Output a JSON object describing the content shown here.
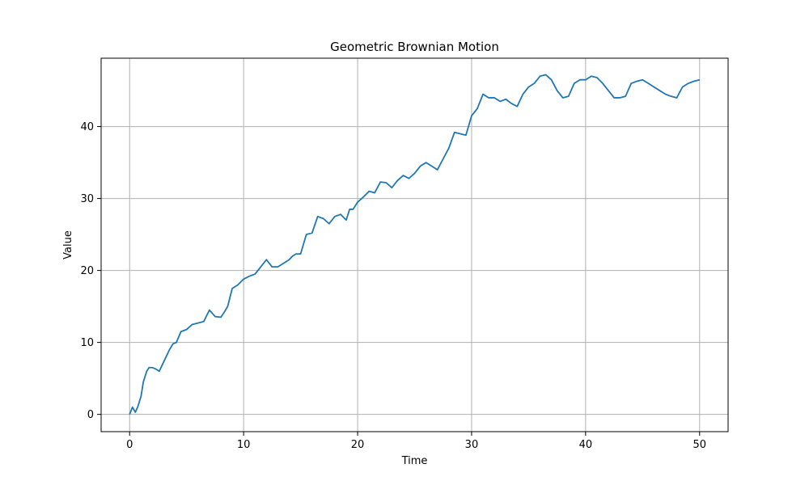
{
  "chart_data": {
    "type": "line",
    "title": "Geometric Brownian Motion",
    "xlabel": "Time",
    "ylabel": "Value",
    "xlim": [
      -2.5,
      52.5
    ],
    "ylim": [
      -2.4,
      49.5
    ],
    "xticks": [
      0,
      10,
      20,
      30,
      40,
      50
    ],
    "yticks": [
      0,
      10,
      20,
      30,
      40
    ],
    "grid": true,
    "colors": {
      "line": "#1f77b4",
      "grid": "#b0b0b0",
      "axes": "#000000"
    },
    "series": [
      {
        "x": [
          0,
          0.25,
          0.5,
          0.7,
          1,
          1.2,
          1.5,
          1.7,
          2,
          2.3,
          2.6,
          2.9,
          3.2,
          3.5,
          3.8,
          4.1,
          4.5,
          5,
          5.5,
          6,
          6.5,
          7,
          7.5,
          8,
          8.3,
          8.6,
          9,
          9.5,
          10,
          10.5,
          11,
          11.5,
          12,
          12.5,
          13,
          13.5,
          14,
          14.3,
          14.6,
          15,
          15.5,
          16,
          16.5,
          17,
          17.5,
          18,
          18.5,
          19,
          19.3,
          19.6,
          20,
          20.5,
          21,
          21.5,
          22,
          22.5,
          23,
          23.5,
          24,
          24.5,
          25,
          25.5,
          26,
          26.5,
          27,
          27.5,
          28,
          28.5,
          29,
          29.5,
          30,
          30.5,
          31,
          31.5,
          32,
          32.5,
          33,
          33.5,
          34,
          34.5,
          35,
          35.5,
          36,
          36.5,
          37,
          37.5,
          38,
          38.5,
          39,
          39.5,
          40,
          40.5,
          41,
          41.5,
          42,
          42.5,
          43,
          43.5,
          44,
          44.5,
          45,
          45.5,
          46,
          46.5,
          47,
          47.5,
          48,
          48.5,
          49,
          49.5,
          50
        ],
        "values": [
          0,
          1,
          0.3,
          1,
          2.5,
          4.5,
          6,
          6.5,
          6.5,
          6.3,
          6,
          7,
          8,
          9,
          9.8,
          10,
          11.5,
          11.8,
          12.5,
          12.7,
          12.9,
          14.5,
          13.6,
          13.5,
          14.2,
          15,
          17.5,
          18,
          18.8,
          19.2,
          19.5,
          20.5,
          21.5,
          20.5,
          20.5,
          21,
          21.5,
          22,
          22.3,
          22.3,
          25,
          25.2,
          27.5,
          27.2,
          26.5,
          27.5,
          27.8,
          27,
          28.5,
          28.5,
          29.5,
          30.2,
          31,
          30.8,
          32.3,
          32.2,
          31.5,
          32.5,
          33.2,
          32.8,
          33.5,
          34.5,
          35,
          34.5,
          34,
          35.5,
          37,
          39.2,
          39,
          38.8,
          41.5,
          42.5,
          44.5,
          44,
          44,
          43.5,
          43.8,
          43.2,
          42.8,
          44.5,
          45.5,
          46,
          47,
          47.2,
          46.5,
          45,
          44,
          44.2,
          46,
          46.5,
          46.5,
          47,
          46.8,
          46,
          45,
          44,
          44,
          44.2,
          46,
          46.3,
          46.5,
          46,
          45.5,
          45,
          44.5,
          44.2,
          44,
          45.5,
          46,
          46.3,
          46.5
        ]
      }
    ]
  }
}
